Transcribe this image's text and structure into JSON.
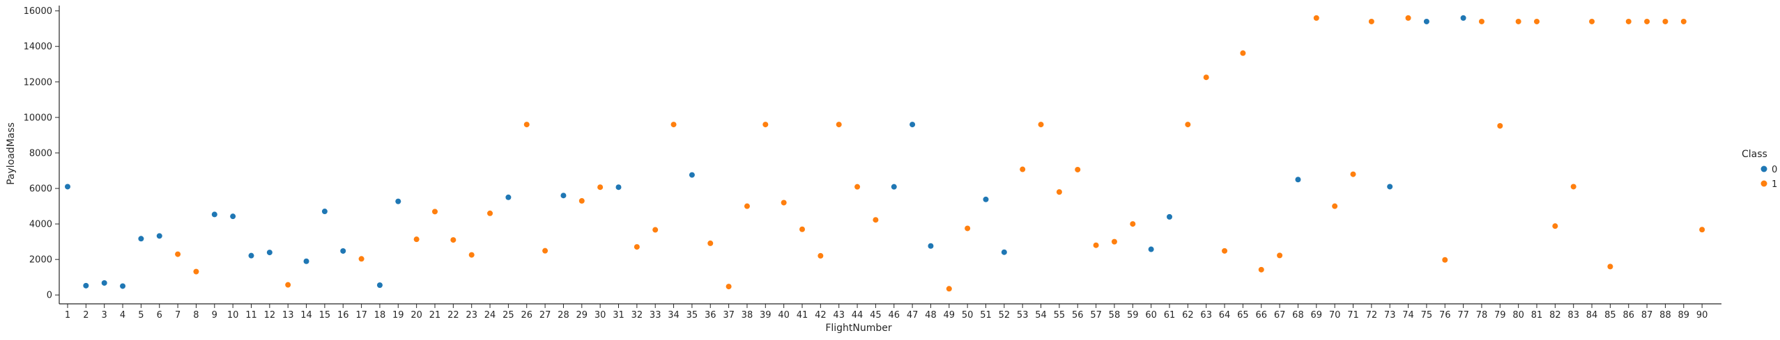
{
  "chart_data": {
    "type": "scatter",
    "xlabel": "FlightNumber",
    "ylabel": "PayloadMass",
    "ylim": [
      -500,
      16300
    ],
    "yticks": [
      0,
      2000,
      4000,
      6000,
      8000,
      10000,
      12000,
      14000,
      16000
    ],
    "xticks": [
      1,
      2,
      3,
      4,
      5,
      6,
      7,
      8,
      9,
      10,
      11,
      12,
      13,
      14,
      15,
      16,
      17,
      18,
      19,
      20,
      21,
      22,
      23,
      24,
      25,
      26,
      27,
      28,
      29,
      30,
      31,
      32,
      33,
      34,
      35,
      36,
      37,
      38,
      39,
      40,
      41,
      42,
      43,
      44,
      45,
      46,
      47,
      48,
      49,
      50,
      51,
      52,
      53,
      54,
      55,
      56,
      57,
      58,
      59,
      60,
      61,
      62,
      63,
      64,
      65,
      66,
      67,
      68,
      69,
      70,
      71,
      72,
      73,
      74,
      75,
      76,
      77,
      78,
      79,
      80,
      81,
      82,
      83,
      84,
      85,
      86,
      87,
      88,
      89,
      90
    ],
    "grid": false,
    "legend": {
      "title": "Class",
      "placement": "right",
      "entries": [
        "0",
        "1"
      ]
    },
    "colors": {
      "0": "#1f77b4",
      "1": "#ff7f0e"
    },
    "points": [
      {
        "x": 1,
        "y": 6100,
        "class": "0"
      },
      {
        "x": 2,
        "y": 525,
        "class": "0"
      },
      {
        "x": 3,
        "y": 677,
        "class": "0"
      },
      {
        "x": 4,
        "y": 500,
        "class": "0"
      },
      {
        "x": 5,
        "y": 3170,
        "class": "0"
      },
      {
        "x": 6,
        "y": 3325,
        "class": "0"
      },
      {
        "x": 7,
        "y": 2296,
        "class": "1"
      },
      {
        "x": 8,
        "y": 1316,
        "class": "1"
      },
      {
        "x": 9,
        "y": 4535,
        "class": "0"
      },
      {
        "x": 10,
        "y": 4428,
        "class": "0"
      },
      {
        "x": 11,
        "y": 2216,
        "class": "0"
      },
      {
        "x": 12,
        "y": 2395,
        "class": "0"
      },
      {
        "x": 13,
        "y": 570,
        "class": "1"
      },
      {
        "x": 14,
        "y": 1898,
        "class": "0"
      },
      {
        "x": 15,
        "y": 4707,
        "class": "0"
      },
      {
        "x": 16,
        "y": 2477,
        "class": "0"
      },
      {
        "x": 17,
        "y": 2034,
        "class": "1"
      },
      {
        "x": 18,
        "y": 553,
        "class": "0"
      },
      {
        "x": 19,
        "y": 5271,
        "class": "0"
      },
      {
        "x": 20,
        "y": 3136,
        "class": "1"
      },
      {
        "x": 21,
        "y": 4696,
        "class": "1"
      },
      {
        "x": 22,
        "y": 3100,
        "class": "1"
      },
      {
        "x": 23,
        "y": 2257,
        "class": "1"
      },
      {
        "x": 24,
        "y": 4600,
        "class": "1"
      },
      {
        "x": 25,
        "y": 5500,
        "class": "0"
      },
      {
        "x": 26,
        "y": 9600,
        "class": "1"
      },
      {
        "x": 27,
        "y": 2490,
        "class": "1"
      },
      {
        "x": 28,
        "y": 5600,
        "class": "0"
      },
      {
        "x": 29,
        "y": 5300,
        "class": "1"
      },
      {
        "x": 30,
        "y": 6070,
        "class": "1"
      },
      {
        "x": 31,
        "y": 6070,
        "class": "0"
      },
      {
        "x": 32,
        "y": 2708,
        "class": "1"
      },
      {
        "x": 33,
        "y": 3669,
        "class": "1"
      },
      {
        "x": 34,
        "y": 9600,
        "class": "1"
      },
      {
        "x": 35,
        "y": 6761,
        "class": "0"
      },
      {
        "x": 36,
        "y": 2910,
        "class": "1"
      },
      {
        "x": 37,
        "y": 475,
        "class": "1"
      },
      {
        "x": 38,
        "y": 5000,
        "class": "1"
      },
      {
        "x": 39,
        "y": 9600,
        "class": "1"
      },
      {
        "x": 40,
        "y": 5200,
        "class": "1"
      },
      {
        "x": 41,
        "y": 3700,
        "class": "1"
      },
      {
        "x": 42,
        "y": 2205,
        "class": "1"
      },
      {
        "x": 43,
        "y": 9600,
        "class": "1"
      },
      {
        "x": 44,
        "y": 6092,
        "class": "1"
      },
      {
        "x": 45,
        "y": 4230,
        "class": "1"
      },
      {
        "x": 46,
        "y": 6092,
        "class": "0"
      },
      {
        "x": 47,
        "y": 9600,
        "class": "0"
      },
      {
        "x": 48,
        "y": 2760,
        "class": "0"
      },
      {
        "x": 49,
        "y": 350,
        "class": "1"
      },
      {
        "x": 50,
        "y": 3750,
        "class": "1"
      },
      {
        "x": 51,
        "y": 5383,
        "class": "0"
      },
      {
        "x": 52,
        "y": 2410,
        "class": "0"
      },
      {
        "x": 53,
        "y": 7076,
        "class": "1"
      },
      {
        "x": 54,
        "y": 9600,
        "class": "1"
      },
      {
        "x": 55,
        "y": 5800,
        "class": "1"
      },
      {
        "x": 56,
        "y": 7060,
        "class": "1"
      },
      {
        "x": 57,
        "y": 2800,
        "class": "1"
      },
      {
        "x": 58,
        "y": 3000,
        "class": "1"
      },
      {
        "x": 59,
        "y": 4000,
        "class": "1"
      },
      {
        "x": 60,
        "y": 2573,
        "class": "0"
      },
      {
        "x": 61,
        "y": 4400,
        "class": "0"
      },
      {
        "x": 62,
        "y": 9600,
        "class": "1"
      },
      {
        "x": 63,
        "y": 12259,
        "class": "1"
      },
      {
        "x": 64,
        "y": 2482,
        "class": "1"
      },
      {
        "x": 65,
        "y": 13620,
        "class": "1"
      },
      {
        "x": 66,
        "y": 1425,
        "class": "1"
      },
      {
        "x": 67,
        "y": 2227,
        "class": "1"
      },
      {
        "x": 68,
        "y": 6500,
        "class": "0"
      },
      {
        "x": 69,
        "y": 15600,
        "class": "1"
      },
      {
        "x": 70,
        "y": 5000,
        "class": "1"
      },
      {
        "x": 71,
        "y": 6800,
        "class": "1"
      },
      {
        "x": 72,
        "y": 15400,
        "class": "1"
      },
      {
        "x": 73,
        "y": 6100,
        "class": "0"
      },
      {
        "x": 74,
        "y": 15600,
        "class": "1"
      },
      {
        "x": 75,
        "y": 15400,
        "class": "0"
      },
      {
        "x": 76,
        "y": 1977,
        "class": "1"
      },
      {
        "x": 77,
        "y": 15600,
        "class": "0"
      },
      {
        "x": 78,
        "y": 15400,
        "class": "1"
      },
      {
        "x": 79,
        "y": 9525,
        "class": "1"
      },
      {
        "x": 80,
        "y": 15400,
        "class": "1"
      },
      {
        "x": 81,
        "y": 15400,
        "class": "1"
      },
      {
        "x": 82,
        "y": 3880,
        "class": "1"
      },
      {
        "x": 83,
        "y": 6100,
        "class": "1"
      },
      {
        "x": 84,
        "y": 15400,
        "class": "1"
      },
      {
        "x": 85,
        "y": 1600,
        "class": "1"
      },
      {
        "x": 86,
        "y": 15400,
        "class": "1"
      },
      {
        "x": 87,
        "y": 15400,
        "class": "1"
      },
      {
        "x": 88,
        "y": 15400,
        "class": "1"
      },
      {
        "x": 89,
        "y": 15400,
        "class": "1"
      },
      {
        "x": 90,
        "y": 3681,
        "class": "1"
      }
    ]
  }
}
